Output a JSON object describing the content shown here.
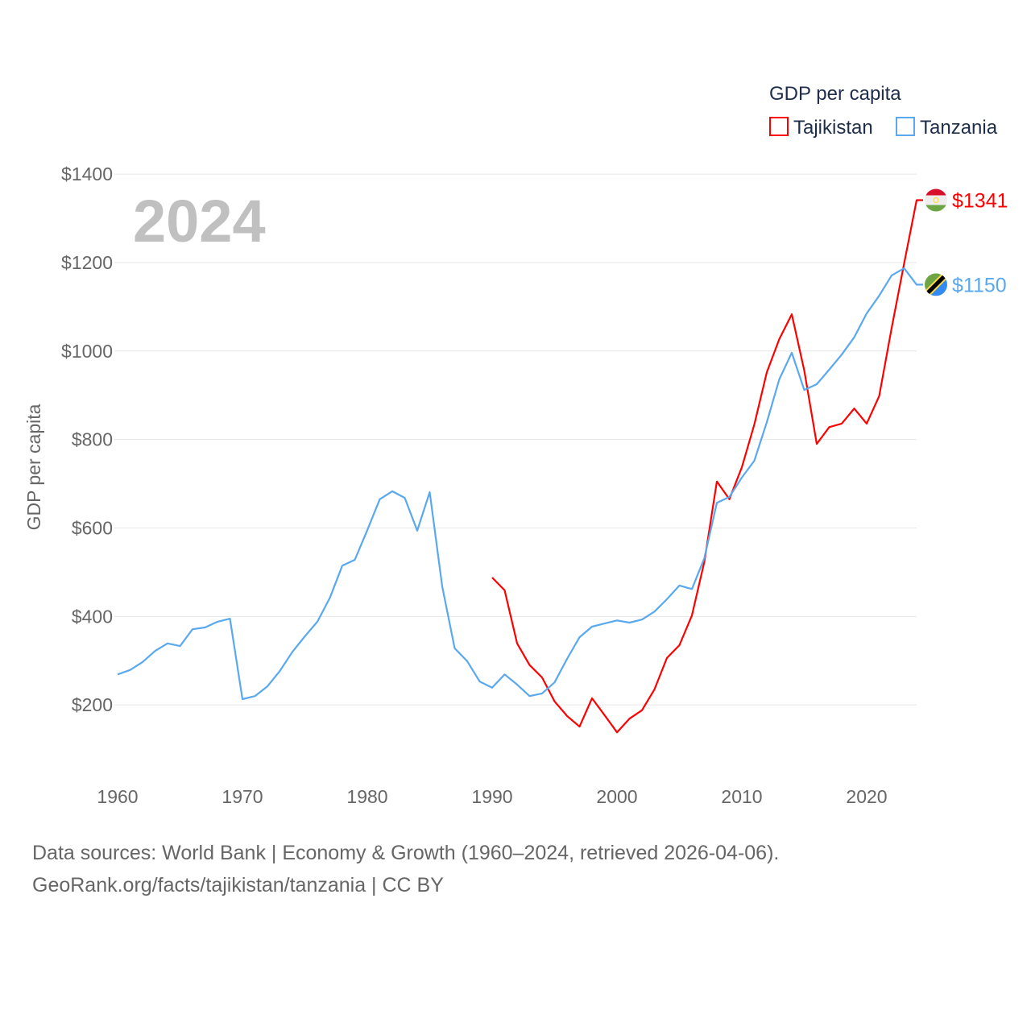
{
  "chart_data": {
    "type": "line",
    "ylabel": "GDP per capita",
    "xlabel": "",
    "year_label": "2024",
    "legend": {
      "title": "GDP per capita",
      "placement": "top-right"
    },
    "xlim": [
      1960,
      2024
    ],
    "ylim": [
      0,
      1400
    ],
    "x_ticks": [
      1960,
      1970,
      1980,
      1990,
      2000,
      2010,
      2020
    ],
    "y_ticks": [
      200,
      400,
      600,
      800,
      1000,
      1200,
      1400
    ],
    "y_tick_labels": [
      "$200",
      "$400",
      "$600",
      "$800",
      "$1000",
      "$1200",
      "$1400"
    ],
    "grid": true,
    "series": [
      {
        "name": "Tajikistan",
        "color": "#ff0000",
        "end_label": "$1341",
        "flag": "tajikistan-flag",
        "start_year": 1990,
        "values": [
          488,
          459,
          339,
          290,
          262,
          208,
          175,
          151,
          215,
          177,
          138,
          169,
          188,
          235,
          306,
          335,
          402,
          524,
          705,
          665,
          737,
          834,
          952,
          1027,
          1083,
          956,
          790,
          828,
          836,
          870,
          836,
          898,
          1052,
          1198,
          1341
        ]
      },
      {
        "name": "Tanzania",
        "color": "#5aa8ee",
        "end_label": "$1150",
        "flag": "tanzania-flag",
        "start_year": 1960,
        "values": [
          269,
          279,
          297,
          322,
          339,
          333,
          371,
          375,
          388,
          395,
          213,
          220,
          242,
          277,
          320,
          355,
          388,
          442,
          515,
          528,
          595,
          665,
          683,
          668,
          594,
          681,
          468,
          328,
          299,
          253,
          239,
          269,
          246,
          220,
          226,
          251,
          304,
          353,
          377,
          384,
          391,
          386,
          393,
          411,
          439,
          470,
          462,
          532,
          657,
          670,
          714,
          752,
          839,
          936,
          996,
          912,
          925,
          958,
          992,
          1031,
          1085,
          1125,
          1171,
          1187,
          1150
        ]
      }
    ]
  },
  "footer": {
    "line1": "Data sources: World Bank | Economy & Growth (1960–2024, retrieved 2026-04-06).",
    "line2": "GeoRank.org/facts/tajikistan/tanzania | CC BY"
  }
}
